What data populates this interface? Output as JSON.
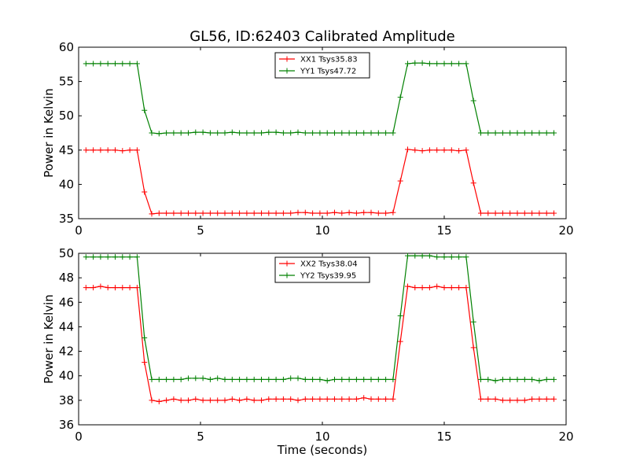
{
  "chart_data": [
    {
      "type": "line",
      "title": "GL56, ID:62403 Calibrated Amplitude",
      "xlabel": "",
      "ylabel": "Power in Kelvin",
      "xlim": [
        0,
        20
      ],
      "ylim": [
        35,
        60
      ],
      "xticks": [
        0,
        5,
        10,
        15,
        20
      ],
      "yticks": [
        35,
        40,
        45,
        50,
        55,
        60
      ],
      "grid": false,
      "legend": "top-center",
      "marker": "plus",
      "x": [
        0.3,
        0.6,
        0.9,
        1.2,
        1.5,
        1.8,
        2.1,
        2.4,
        2.7,
        3.0,
        3.3,
        3.6,
        3.9,
        4.2,
        4.5,
        4.8,
        5.1,
        5.4,
        5.7,
        6.0,
        6.3,
        6.6,
        6.9,
        7.2,
        7.5,
        7.8,
        8.1,
        8.4,
        8.7,
        9.0,
        9.3,
        9.6,
        9.9,
        10.2,
        10.5,
        10.8,
        11.1,
        11.4,
        11.7,
        12.0,
        12.3,
        12.6,
        12.9,
        13.2,
        13.5,
        13.8,
        14.1,
        14.4,
        14.7,
        15.0,
        15.3,
        15.6,
        15.9,
        16.2,
        16.5,
        16.8,
        17.1,
        17.4,
        17.7,
        18.0,
        18.3,
        18.6,
        18.9,
        19.2,
        19.5
      ],
      "series": [
        {
          "name": "XX1 Tsys35.83",
          "color": "#ff0000",
          "values": [
            45.0,
            45.0,
            45.0,
            45.0,
            45.0,
            44.9,
            45.0,
            45.0,
            38.9,
            35.7,
            35.8,
            35.8,
            35.8,
            35.8,
            35.8,
            35.8,
            35.8,
            35.8,
            35.8,
            35.8,
            35.8,
            35.8,
            35.8,
            35.8,
            35.8,
            35.8,
            35.8,
            35.8,
            35.8,
            35.9,
            35.9,
            35.8,
            35.8,
            35.8,
            35.9,
            35.8,
            35.9,
            35.8,
            35.9,
            35.9,
            35.8,
            35.8,
            35.9,
            40.5,
            45.1,
            45.0,
            44.9,
            45.0,
            45.0,
            45.0,
            45.0,
            44.9,
            45.0,
            40.2,
            35.8,
            35.8,
            35.8,
            35.8,
            35.8,
            35.8,
            35.8,
            35.8,
            35.8,
            35.8,
            35.8
          ]
        },
        {
          "name": "YY1 Tsys47.72",
          "color": "#008000",
          "values": [
            57.6,
            57.6,
            57.6,
            57.6,
            57.6,
            57.6,
            57.6,
            57.6,
            50.8,
            47.5,
            47.4,
            47.5,
            47.5,
            47.5,
            47.5,
            47.6,
            47.6,
            47.5,
            47.5,
            47.5,
            47.6,
            47.5,
            47.5,
            47.5,
            47.5,
            47.6,
            47.6,
            47.5,
            47.5,
            47.6,
            47.5,
            47.5,
            47.5,
            47.5,
            47.5,
            47.5,
            47.5,
            47.5,
            47.5,
            47.5,
            47.5,
            47.5,
            47.5,
            52.7,
            57.6,
            57.7,
            57.7,
            57.6,
            57.6,
            57.6,
            57.6,
            57.6,
            57.6,
            52.2,
            47.5,
            47.5,
            47.5,
            47.5,
            47.5,
            47.5,
            47.5,
            47.5,
            47.5,
            47.5,
            47.5
          ]
        }
      ]
    },
    {
      "type": "line",
      "title": "",
      "xlabel": "Time (seconds)",
      "ylabel": "Power in Kelvin",
      "xlim": [
        0,
        20
      ],
      "ylim": [
        36,
        50
      ],
      "xticks": [
        0,
        5,
        10,
        15,
        20
      ],
      "yticks": [
        36,
        38,
        40,
        42,
        44,
        46,
        48,
        50
      ],
      "grid": false,
      "legend": "top-center",
      "marker": "plus",
      "x": [
        0.3,
        0.6,
        0.9,
        1.2,
        1.5,
        1.8,
        2.1,
        2.4,
        2.7,
        3.0,
        3.3,
        3.6,
        3.9,
        4.2,
        4.5,
        4.8,
        5.1,
        5.4,
        5.7,
        6.0,
        6.3,
        6.6,
        6.9,
        7.2,
        7.5,
        7.8,
        8.1,
        8.4,
        8.7,
        9.0,
        9.3,
        9.6,
        9.9,
        10.2,
        10.5,
        10.8,
        11.1,
        11.4,
        11.7,
        12.0,
        12.3,
        12.6,
        12.9,
        13.2,
        13.5,
        13.8,
        14.1,
        14.4,
        14.7,
        15.0,
        15.3,
        15.6,
        15.9,
        16.2,
        16.5,
        16.8,
        17.1,
        17.4,
        17.7,
        18.0,
        18.3,
        18.6,
        18.9,
        19.2,
        19.5
      ],
      "series": [
        {
          "name": "XX2 Tsys38.04",
          "color": "#ff0000",
          "values": [
            47.2,
            47.2,
            47.3,
            47.2,
            47.2,
            47.2,
            47.2,
            47.2,
            41.1,
            38.0,
            37.9,
            38.0,
            38.1,
            38.0,
            38.0,
            38.1,
            38.0,
            38.0,
            38.0,
            38.0,
            38.1,
            38.0,
            38.1,
            38.0,
            38.0,
            38.1,
            38.1,
            38.1,
            38.1,
            38.0,
            38.1,
            38.1,
            38.1,
            38.1,
            38.1,
            38.1,
            38.1,
            38.1,
            38.2,
            38.1,
            38.1,
            38.1,
            38.1,
            42.8,
            47.3,
            47.2,
            47.2,
            47.2,
            47.3,
            47.2,
            47.2,
            47.2,
            47.2,
            42.3,
            38.1,
            38.1,
            38.1,
            38.0,
            38.0,
            38.0,
            38.0,
            38.1,
            38.1,
            38.1,
            38.1
          ]
        },
        {
          "name": "YY2 Tsys39.95",
          "color": "#008000",
          "values": [
            49.7,
            49.7,
            49.7,
            49.7,
            49.7,
            49.7,
            49.7,
            49.7,
            43.1,
            39.7,
            39.7,
            39.7,
            39.7,
            39.7,
            39.8,
            39.8,
            39.8,
            39.7,
            39.8,
            39.7,
            39.7,
            39.7,
            39.7,
            39.7,
            39.7,
            39.7,
            39.7,
            39.7,
            39.8,
            39.8,
            39.7,
            39.7,
            39.7,
            39.6,
            39.7,
            39.7,
            39.7,
            39.7,
            39.7,
            39.7,
            39.7,
            39.7,
            39.7,
            44.9,
            49.8,
            49.8,
            49.8,
            49.8,
            49.7,
            49.7,
            49.7,
            49.7,
            49.7,
            44.4,
            39.7,
            39.7,
            39.6,
            39.7,
            39.7,
            39.7,
            39.7,
            39.7,
            39.6,
            39.7,
            39.7
          ]
        }
      ]
    }
  ]
}
